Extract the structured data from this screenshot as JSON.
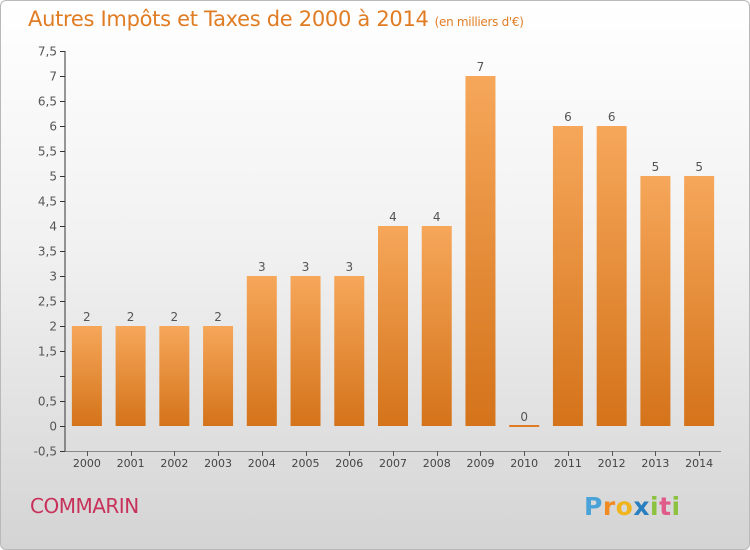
{
  "chart_data": {
    "type": "bar",
    "title": "Autres Impôts et Taxes de 2000 à 2014",
    "unit_note": "(en milliers d'€)",
    "categories": [
      "2000",
      "2001",
      "2002",
      "2003",
      "2004",
      "2005",
      "2006",
      "2007",
      "2008",
      "2009",
      "2010",
      "2011",
      "2012",
      "2013",
      "2014"
    ],
    "values": [
      2,
      2,
      2,
      2,
      3,
      3,
      3,
      4,
      4,
      7,
      0,
      6,
      6,
      5,
      5
    ],
    "value_labels": [
      "2",
      "2",
      "2",
      "2",
      "3",
      "3",
      "3",
      "4",
      "4",
      "7",
      "0",
      "6",
      "6",
      "5",
      "5"
    ],
    "ylim": [
      -0.5,
      7.5
    ],
    "yticks": [
      -0.5,
      0,
      0.5,
      1,
      1.5,
      2,
      2.5,
      3,
      3.5,
      4,
      4.5,
      5,
      5.5,
      6,
      6.5,
      7,
      7.5
    ],
    "ytick_labels": [
      "-0,5",
      "0",
      "0,5",
      "",
      "1,5",
      "2",
      "2,5",
      "3",
      "3,5",
      "4",
      "4,5",
      "5",
      "5,5",
      "6",
      "6,5",
      "7",
      "7,5"
    ],
    "xlabel": "",
    "ylabel": "",
    "grid": false,
    "bar_color_top": "#f6a75a",
    "bar_color_bottom": "#d4731a",
    "zero_bar_color": "#e07d24"
  },
  "footer": {
    "commune": "COMMARIN",
    "logo_letters": [
      "P",
      "r",
      "o",
      "x",
      "i",
      "t",
      "i"
    ]
  }
}
